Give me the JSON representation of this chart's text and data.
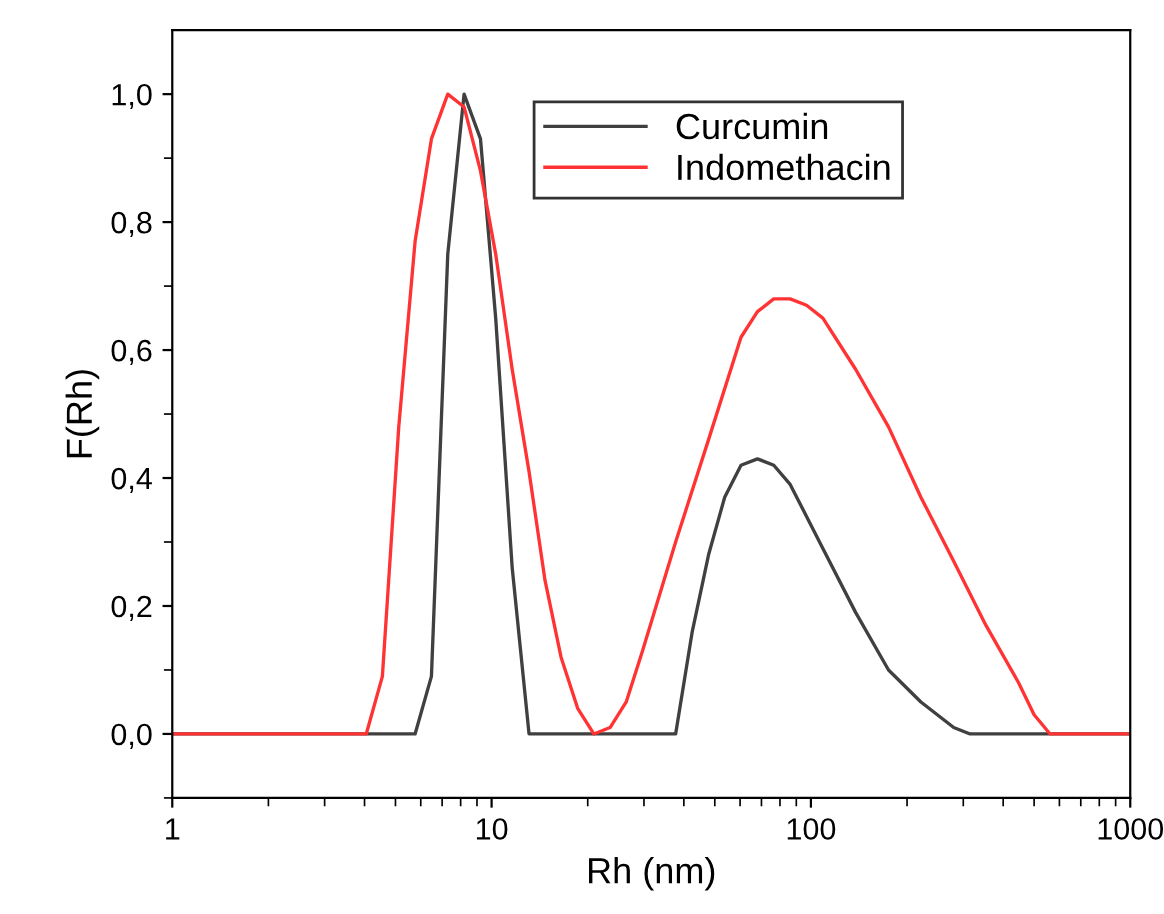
{
  "chart_data": {
    "type": "line",
    "xlabel": "Rh (nm)",
    "ylabel": "F(Rh)",
    "log": "x",
    "xlim": [
      1,
      1000
    ],
    "xticks": [
      1,
      10,
      100,
      1000
    ],
    "ylim": [
      -0.1,
      1.1
    ],
    "yticks": [
      {
        "value": 0,
        "label": "0,0"
      },
      {
        "value": 0.2,
        "label": "0,2"
      },
      {
        "value": 0.4,
        "label": "0,4"
      },
      {
        "value": 0.6,
        "label": "0,6"
      },
      {
        "value": 0.8,
        "label": "0,8"
      },
      {
        "value": 1.0,
        "label": "1,0"
      }
    ],
    "grid": false,
    "legend": "top",
    "marker": "none",
    "line_style": "solid",
    "series": [
      {
        "name": "Curcumin",
        "color": "#404040",
        "x": [
          1,
          5.76,
          6.48,
          7.29,
          8.2,
          9.23,
          10.3,
          11.6,
          13.1,
          37.7,
          42.5,
          47.8,
          53.7,
          60.4,
          68,
          76.5,
          86.1,
          109,
          138,
          175,
          221,
          280,
          315,
          1000
        ],
        "values": [
          0,
          0,
          0.09,
          0.75,
          1.0,
          0.93,
          0.65,
          0.26,
          0,
          0,
          0.16,
          0.28,
          0.37,
          0.42,
          0.43,
          0.42,
          0.39,
          0.29,
          0.19,
          0.1,
          0.05,
          0.01,
          0,
          0
        ]
      },
      {
        "name": "Indomethacin",
        "color": "#ff3333",
        "x": [
          1,
          4.05,
          4.55,
          5.12,
          5.76,
          6.48,
          7.29,
          8.2,
          9.23,
          10.3,
          11.6,
          13.1,
          14.7,
          16.5,
          18.6,
          20.9,
          23.5,
          26.4,
          29.7,
          37.7,
          47.8,
          60.4,
          68,
          76.5,
          86.1,
          96.9,
          109,
          138,
          175,
          221,
          280,
          353,
          447,
          500,
          561,
          1000
        ],
        "values": [
          0,
          0,
          0.09,
          0.48,
          0.77,
          0.93,
          1.0,
          0.98,
          0.88,
          0.75,
          0.57,
          0.41,
          0.24,
          0.12,
          0.04,
          0,
          0.01,
          0.05,
          0.13,
          0.3,
          0.46,
          0.62,
          0.66,
          0.68,
          0.68,
          0.67,
          0.65,
          0.57,
          0.48,
          0.37,
          0.27,
          0.17,
          0.08,
          0.03,
          0,
          0
        ]
      }
    ]
  }
}
